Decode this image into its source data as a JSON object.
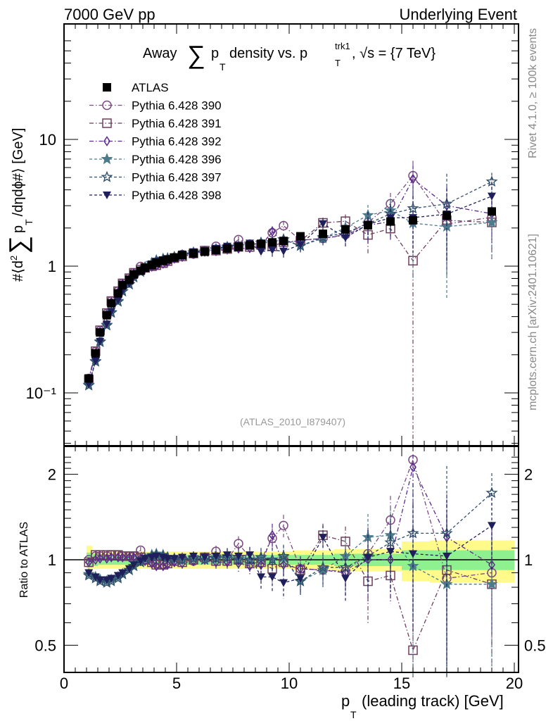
{
  "header": {
    "left": "7000 GeV pp",
    "right": "Underlying Event"
  },
  "side_labels": {
    "rivet": "Rivet 4.1.0, ≥ 100k events",
    "mcplots": "mcplots.cern.ch [arXiv:2401.10621]"
  },
  "analysis_id": "(ATLAS_2010_I879407)",
  "title_parts": {
    "away": "Away",
    "sum": "∑",
    "p": "p",
    "T": "T",
    "mid": "density vs. p",
    "sup": "trk1",
    "end": ", √s = {7 TeV}"
  },
  "ylabel_parts": {
    "pre": "#⟨d",
    "sq": "2",
    "sum": "∑",
    "p": "p",
    "T": "T",
    "post": "/dηdϕ#⟩ [GeV]"
  },
  "xlabel_parts": {
    "p": "p",
    "T": "T",
    "rest": "(leading track) [GeV]"
  },
  "chart_data": {
    "type": "scatter",
    "title": "Away ∑pT density vs. pT^trk1, √s = {7 TeV}",
    "xlabel": "pT (leading track) [GeV]",
    "ylabel": "#<d2 ∑pT /dηdϕ#> [GeV]",
    "xlim": [
      0,
      20.2
    ],
    "ylim": [
      0.035,
      60
    ],
    "yscale": "log",
    "ratio_ylabel": "Ratio to ATLAS",
    "ratio_ylim": [
      0.38,
      2.4
    ],
    "ratio_yscale": "log",
    "x_ticks": [
      "0",
      "5",
      "10",
      "15",
      "20"
    ],
    "x_tick_values": [
      0,
      5,
      10,
      15,
      20
    ],
    "y_ticks": [
      "10⁻¹",
      "1",
      "10"
    ],
    "y_tick_values": [
      0.1,
      1,
      10
    ],
    "ratio_ticks": [
      "0.5",
      "1",
      "2"
    ],
    "ratio_tick_values": [
      0.5,
      1,
      2
    ],
    "legend_position": "top-left",
    "x": [
      1.1,
      1.4,
      1.6,
      1.9,
      2.1,
      2.4,
      2.6,
      2.9,
      3.1,
      3.4,
      3.6,
      3.9,
      4.1,
      4.4,
      4.6,
      4.9,
      5.25,
      5.75,
      6.25,
      6.75,
      7.25,
      7.75,
      8.25,
      8.75,
      9.25,
      9.75,
      10.5,
      11.5,
      12.5,
      13.5,
      14.5,
      15.5,
      17,
      19
    ],
    "data": {
      "name": "ATLAS",
      "color": "#000000",
      "values": [
        0.13,
        0.205,
        0.3,
        0.41,
        0.51,
        0.61,
        0.71,
        0.78,
        0.86,
        0.92,
        0.97,
        1.02,
        1.06,
        1.1,
        1.13,
        1.17,
        1.22,
        1.26,
        1.3,
        1.34,
        1.38,
        1.42,
        1.46,
        1.5,
        1.54,
        1.58,
        1.72,
        1.8,
        1.95,
        2.1,
        2.25,
        2.3,
        2.5,
        2.7
      ],
      "band_inner": [
        0.06,
        0.05,
        0.04,
        0.04,
        0.04,
        0.04,
        0.04,
        0.04,
        0.04,
        0.04,
        0.04,
        0.04,
        0.04,
        0.04,
        0.04,
        0.04,
        0.04,
        0.04,
        0.04,
        0.04,
        0.04,
        0.04,
        0.04,
        0.04,
        0.04,
        0.04,
        0.04,
        0.04,
        0.05,
        0.05,
        0.05,
        0.08,
        0.08,
        0.08
      ],
      "band_outer": [
        0.12,
        0.07,
        0.07,
        0.07,
        0.07,
        0.07,
        0.07,
        0.07,
        0.07,
        0.07,
        0.07,
        0.07,
        0.07,
        0.07,
        0.07,
        0.07,
        0.07,
        0.07,
        0.07,
        0.07,
        0.07,
        0.07,
        0.07,
        0.07,
        0.07,
        0.07,
        0.08,
        0.08,
        0.09,
        0.09,
        0.09,
        0.16,
        0.17,
        0.17
      ]
    },
    "series": [
      {
        "name": "Pythia 6.428 390",
        "marker": "circle-open",
        "dash": "dashdot",
        "color": "#7b4a80",
        "ratio": [
          1.0,
          1.03,
          1.03,
          1.03,
          1.04,
          1.04,
          1.03,
          1.03,
          1.03,
          1.08,
          1.0,
          0.99,
          0.97,
          0.96,
          0.98,
          1.0,
          1.01,
          0.99,
          1.02,
          1.07,
          1.0,
          1.14,
          1.02,
          1.0,
          1.19,
          1.32,
          0.93,
          0.92,
          0.91,
          1.05,
          1.38,
          2.25,
          0.86,
          0.9
        ],
        "ratio_err": [
          0.02,
          0.02,
          0.02,
          0.02,
          0.02,
          0.02,
          0.02,
          0.02,
          0.02,
          0.03,
          0.03,
          0.03,
          0.03,
          0.03,
          0.03,
          0.03,
          0.04,
          0.04,
          0.04,
          0.05,
          0.06,
          0.07,
          0.07,
          0.08,
          0.1,
          0.12,
          0.1,
          0.1,
          0.12,
          0.2,
          0.3,
          0.7,
          0.5,
          0.4
        ]
      },
      {
        "name": "Pythia 6.428 391",
        "marker": "square-open",
        "dash": "dashdot",
        "color": "#6e3f5c",
        "ratio": [
          0.98,
          1.04,
          1.04,
          1.04,
          1.04,
          1.04,
          1.03,
          1.03,
          1.03,
          1.02,
          1.0,
          0.98,
          0.96,
          0.96,
          0.97,
          0.99,
          0.98,
          1.0,
          1.02,
          0.99,
          0.99,
          1.0,
          0.97,
          0.98,
          0.93,
          0.98,
          0.92,
          1.22,
          1.16,
          0.84,
          0.88,
          0.48,
          0.92,
          0.82
        ],
        "ratio_err": [
          0.02,
          0.02,
          0.02,
          0.02,
          0.02,
          0.02,
          0.02,
          0.02,
          0.02,
          0.03,
          0.03,
          0.03,
          0.03,
          0.03,
          0.03,
          0.03,
          0.04,
          0.04,
          0.04,
          0.05,
          0.06,
          0.07,
          0.07,
          0.08,
          0.1,
          0.1,
          0.1,
          0.12,
          0.15,
          0.25,
          0.15,
          0.6,
          0.5,
          0.4
        ]
      },
      {
        "name": "Pythia 6.428 392",
        "marker": "diamond-open",
        "dash": "dashdot",
        "color": "#5b2a8c",
        "ratio": [
          0.98,
          1.0,
          1.01,
          1.01,
          1.02,
          1.02,
          1.02,
          1.02,
          1.02,
          1.01,
          0.99,
          0.97,
          0.95,
          0.95,
          0.96,
          0.98,
          0.97,
          0.99,
          1.0,
          0.98,
          0.98,
          0.97,
          0.95,
          0.96,
          1.22,
          0.96,
          0.93,
          0.92,
          0.9,
          1.0,
          1.0,
          2.12,
          1.2,
          0.96
        ],
        "ratio_err": [
          0.02,
          0.02,
          0.02,
          0.02,
          0.02,
          0.02,
          0.02,
          0.02,
          0.02,
          0.03,
          0.03,
          0.03,
          0.03,
          0.03,
          0.03,
          0.03,
          0.04,
          0.04,
          0.04,
          0.05,
          0.06,
          0.07,
          0.07,
          0.08,
          0.12,
          0.1,
          0.1,
          0.12,
          0.15,
          0.3,
          0.3,
          0.6,
          0.5,
          0.4
        ]
      },
      {
        "name": "Pythia 6.428 396",
        "marker": "star-filled",
        "dash": "dashed",
        "color": "#4d7b8c",
        "ratio": [
          0.89,
          0.87,
          0.85,
          0.84,
          0.85,
          0.87,
          0.89,
          0.92,
          0.95,
          0.98,
          1.01,
          1.04,
          1.05,
          1.04,
          1.02,
          1.01,
          1.0,
          1.02,
          1.0,
          1.02,
          1.03,
          1.01,
          1.0,
          1.02,
          1.0,
          1.02,
          0.84,
          0.92,
          1.03,
          1.2,
          1.22,
          0.95,
          0.82,
          0.82
        ],
        "ratio_err": [
          0.02,
          0.02,
          0.02,
          0.02,
          0.02,
          0.02,
          0.02,
          0.02,
          0.02,
          0.03,
          0.03,
          0.03,
          0.03,
          0.03,
          0.03,
          0.03,
          0.04,
          0.04,
          0.04,
          0.05,
          0.06,
          0.07,
          0.07,
          0.08,
          0.1,
          0.1,
          0.1,
          0.12,
          0.15,
          0.25,
          0.3,
          0.6,
          0.6,
          0.4
        ]
      },
      {
        "name": "Pythia 6.428 397",
        "marker": "star-open",
        "dash": "dashed",
        "color": "#30506c",
        "ratio": [
          0.88,
          0.86,
          0.84,
          0.83,
          0.84,
          0.86,
          0.89,
          0.92,
          0.95,
          0.98,
          1.01,
          1.03,
          1.04,
          1.03,
          1.02,
          1.01,
          1.0,
          1.01,
          1.0,
          1.01,
          1.02,
          1.0,
          1.0,
          1.02,
          1.0,
          1.03,
          0.84,
          0.94,
          0.94,
          1.03,
          1.15,
          1.24,
          1.24,
          1.72
        ],
        "ratio_err": [
          0.02,
          0.02,
          0.02,
          0.02,
          0.02,
          0.02,
          0.02,
          0.02,
          0.02,
          0.03,
          0.03,
          0.03,
          0.03,
          0.03,
          0.03,
          0.03,
          0.04,
          0.04,
          0.04,
          0.05,
          0.06,
          0.07,
          0.07,
          0.08,
          0.1,
          0.1,
          0.1,
          0.12,
          0.15,
          0.25,
          0.3,
          0.6,
          0.9,
          0.3
        ]
      },
      {
        "name": "Pythia 6.428 398",
        "marker": "triangle-down-filled",
        "dash": "dashed",
        "color": "#1f1f5c",
        "ratio": [
          0.9,
          0.87,
          0.85,
          0.85,
          0.86,
          0.88,
          0.9,
          0.93,
          0.96,
          0.99,
          1.01,
          1.02,
          1.03,
          1.02,
          1.01,
          1.01,
          1.02,
          1.03,
          1.02,
          1.03,
          1.04,
          1.03,
          1.04,
          0.87,
          0.87,
          0.83,
          0.86,
          1.2,
          0.86,
          1.02,
          1.07,
          1.05,
          1.03,
          1.32
        ],
        "ratio_err": [
          0.02,
          0.02,
          0.02,
          0.02,
          0.02,
          0.02,
          0.02,
          0.02,
          0.02,
          0.03,
          0.03,
          0.03,
          0.03,
          0.03,
          0.03,
          0.03,
          0.04,
          0.04,
          0.04,
          0.05,
          0.06,
          0.07,
          0.07,
          0.08,
          0.1,
          0.1,
          0.1,
          0.12,
          0.15,
          0.25,
          0.3,
          0.5,
          0.6,
          0.4
        ]
      }
    ]
  }
}
